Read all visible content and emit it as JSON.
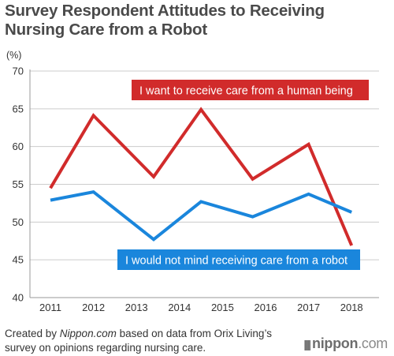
{
  "title_line1": "Survey Respondent Attitudes to Receiving",
  "title_line2": "Nursing Care from a Robot",
  "footer": {
    "prefix": "Created by ",
    "site": "Nippon.com",
    "line1_rest": " based on data from Orix Living’s",
    "line2": "survey on opinions regarding nursing care."
  },
  "brand": {
    "name": "nippon",
    "tld": ".com",
    "icon": "nippon-logo-icon"
  },
  "colors": {
    "human": "#d12b2b",
    "robot": "#1a86dc",
    "grid": "#cccccc",
    "axis": "#999999",
    "text": "#333333"
  },
  "chart_data": {
    "type": "line",
    "ylabel": "(%)",
    "xlabel": "",
    "ylim": [
      40,
      70
    ],
    "yticks": [
      40,
      45,
      50,
      55,
      60,
      65,
      70
    ],
    "categories": [
      "2011",
      "2012",
      "2013",
      "2014",
      "2015",
      "2016",
      "2017",
      "2018"
    ],
    "grid": "horizontal",
    "series": [
      {
        "name": "I want to receive care from a human being",
        "color": "#d12b2b",
        "x": [
          2011,
          2012,
          2013.4,
          2014.5,
          2015.7,
          2017,
          2018
        ],
        "y": [
          54.5,
          64.1,
          56.0,
          64.9,
          55.7,
          60.3,
          46.9
        ]
      },
      {
        "name": "I would not mind receiving care from a robot",
        "color": "#1a86dc",
        "x": [
          2011,
          2012,
          2013.4,
          2014.5,
          2015.7,
          2017,
          2018
        ],
        "y": [
          52.9,
          54.0,
          47.7,
          52.7,
          50.7,
          53.7,
          51.3
        ]
      }
    ]
  }
}
